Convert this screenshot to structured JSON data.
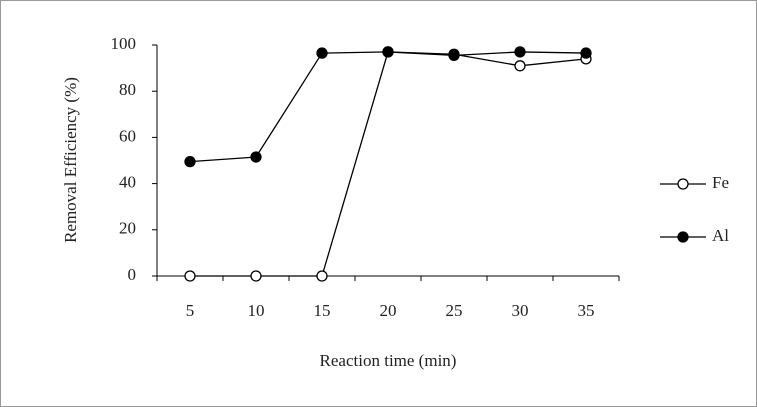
{
  "chart_data": {
    "type": "line",
    "categories": [
      "5",
      "10",
      "15",
      "20",
      "25",
      "30",
      "35"
    ],
    "series": [
      {
        "name": "Fe",
        "color": "#ffffff",
        "values": [
          0,
          0,
          0,
          97,
          96,
          91,
          94
        ]
      },
      {
        "name": "Al",
        "color": "#000000",
        "values": [
          49.5,
          51.5,
          96.5,
          97,
          95.5,
          97,
          96.5
        ]
      }
    ],
    "xlabel": "Reaction time (min)",
    "ylabel": "Removal Efficiency (%)",
    "ylim": [
      0,
      100
    ],
    "yticks": [
      0,
      20,
      40,
      60,
      80,
      100
    ],
    "legend": "right"
  }
}
